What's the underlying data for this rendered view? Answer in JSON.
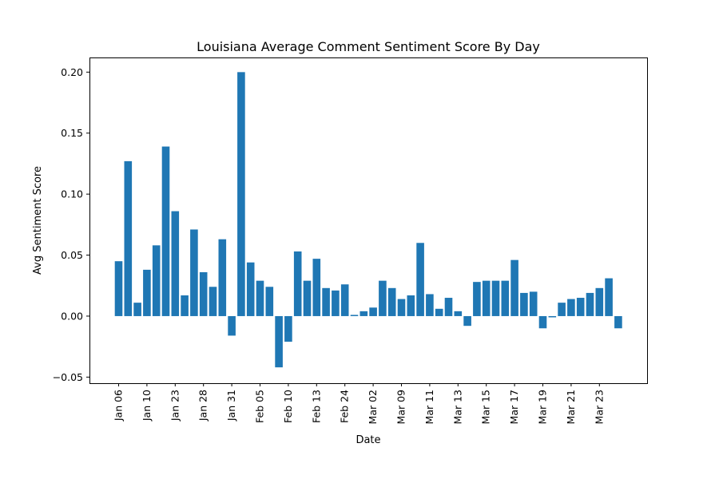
{
  "chart_data": {
    "type": "bar",
    "title": "Louisiana Average Comment Sentiment Score By Day",
    "xlabel": "Date",
    "ylabel": "Avg Sentiment Score",
    "ylim": [
      -0.055,
      0.212
    ],
    "yticks": [
      -0.05,
      0.0,
      0.05,
      0.1,
      0.15,
      0.2
    ],
    "ytick_labels": [
      "−0.05",
      "0.00",
      "0.05",
      "0.10",
      "0.15",
      "0.20"
    ],
    "xtick_labels": [
      "Jan 06",
      "Jan 10",
      "Jan 23",
      "Jan 28",
      "Jan 31",
      "Feb 05",
      "Feb 10",
      "Feb 13",
      "Feb 24",
      "Mar 02",
      "Mar 09",
      "Mar 11",
      "Mar 13",
      "Mar 15",
      "Mar 17",
      "Mar 19",
      "Mar 21",
      "Mar 23"
    ],
    "xtick_every": 3,
    "grid": false,
    "bar_color": "#1f77b4",
    "values": [
      0.045,
      0.127,
      0.011,
      0.038,
      0.058,
      0.139,
      0.086,
      0.017,
      0.071,
      0.036,
      0.024,
      0.063,
      -0.016,
      0.2,
      0.044,
      0.029,
      0.024,
      -0.042,
      -0.021,
      0.053,
      0.029,
      0.047,
      0.023,
      0.021,
      0.026,
      0.001,
      0.004,
      0.007,
      0.029,
      0.023,
      0.014,
      0.017,
      0.06,
      0.018,
      0.006,
      0.015,
      0.004,
      -0.008,
      0.028,
      0.029,
      0.029,
      0.029,
      0.046,
      0.019,
      0.02,
      -0.01,
      -0.001,
      0.011,
      0.014,
      0.015,
      0.019,
      0.023,
      0.031,
      -0.01
    ]
  }
}
